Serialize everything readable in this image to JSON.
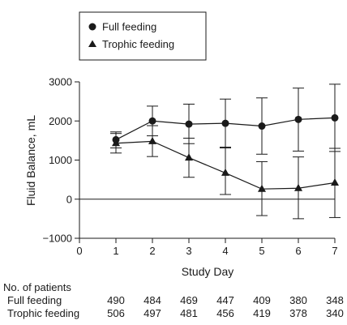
{
  "chart_data": {
    "type": "line",
    "xlabel": "Study Day",
    "ylabel": "Fluid Balance, mL",
    "xlim": [
      0,
      7
    ],
    "ylim": [
      -1000,
      3000
    ],
    "x_ticks": [
      0,
      1,
      2,
      3,
      4,
      5,
      6,
      7
    ],
    "y_ticks": [
      -1000,
      0,
      1000,
      2000,
      3000
    ],
    "y_tick_labels": [
      "−1000",
      "0",
      "1000",
      "2000",
      "3000"
    ],
    "grid": false,
    "legend_position": "top-left",
    "reference_line_y": 0,
    "x": [
      1,
      2,
      3,
      4,
      5,
      6,
      7
    ],
    "series": [
      {
        "name": "Full feeding",
        "marker": "circle",
        "values": [
          1520,
          2000,
          1920,
          1940,
          1870,
          2040,
          2080
        ],
        "error_upper": [
          1720,
          2380,
          2430,
          2560,
          2590,
          2840,
          2940
        ],
        "error_lower": [
          1310,
          1620,
          1420,
          1310,
          1150,
          1230,
          1220
        ]
      },
      {
        "name": "Trophic feeding",
        "marker": "triangle",
        "values": [
          1430,
          1480,
          1060,
          670,
          260,
          280,
          420
        ],
        "error_upper": [
          1680,
          1880,
          1560,
          1330,
          960,
          1080,
          1300
        ],
        "error_lower": [
          1180,
          1090,
          560,
          120,
          -420,
          -500,
          -470
        ]
      }
    ],
    "patients_table": {
      "title": "No. of patients",
      "rows": [
        {
          "label": "Full feeding",
          "values": [
            "490",
            "484",
            "469",
            "447",
            "409",
            "380",
            "348"
          ]
        },
        {
          "label": "Trophic feeding",
          "values": [
            "506",
            "497",
            "481",
            "456",
            "419",
            "378",
            "340"
          ]
        }
      ]
    }
  }
}
